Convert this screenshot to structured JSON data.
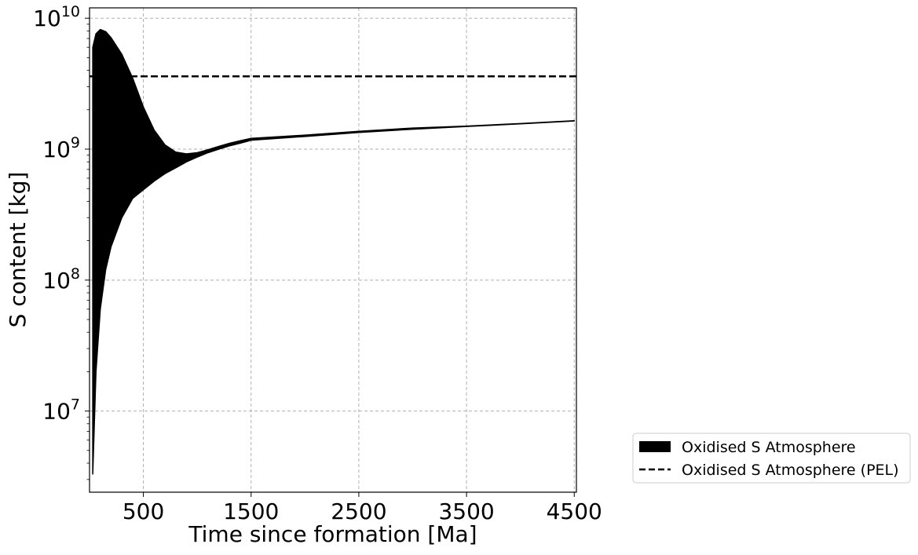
{
  "chart_data": {
    "type": "area",
    "title": "",
    "xlabel": "Time since formation [Ma]",
    "ylabel": "S content [kg]",
    "xlim": [
      0,
      4520
    ],
    "ylim": [
      2400000.0,
      12000000000.0
    ],
    "yscale": "log",
    "grid": true,
    "legend_position": "outside-lower-right",
    "x_ticks": [
      500,
      1500,
      2500,
      3500,
      4500
    ],
    "x_tick_labels": [
      "500",
      "1500",
      "2500",
      "3500",
      "4500"
    ],
    "y_ticks": [
      10000000.0,
      100000000.0,
      1000000000.0,
      10000000000.0
    ],
    "y_tick_labels": [
      {
        "base": "10",
        "exp": "7"
      },
      {
        "base": "10",
        "exp": "8"
      },
      {
        "base": "10",
        "exp": "9"
      },
      {
        "base": "10",
        "exp": "10"
      }
    ],
    "series": [
      {
        "name": "Oxidised S Atmosphere",
        "kind": "band",
        "color": "#000000",
        "x": [
          30,
          30,
          60,
          100,
          150,
          200,
          300,
          400,
          500,
          600,
          700,
          800,
          900,
          1000,
          1100,
          1200,
          1300,
          1400,
          1500,
          2000,
          2500,
          3000,
          3500,
          4000,
          4500
        ],
        "upper": [
          3300000.0,
          6000000000.0,
          7600000000.0,
          8200000000.0,
          7900000000.0,
          7100000000.0,
          5300000000.0,
          3500000000.0,
          2100000000.0,
          1400000000.0,
          1080000000.0,
          950000000.0,
          920000000.0,
          940000000.0,
          990000000.0,
          1050000000.0,
          1110000000.0,
          1160000000.0,
          1210000000.0,
          1280000000.0,
          1370000000.0,
          1450000000.0,
          1500000000.0,
          1570000000.0,
          1650000000.0
        ],
        "lower": [
          3300000.0,
          3300000.0,
          20000000.0,
          60000000.0,
          120000000.0,
          180000000.0,
          300000000.0,
          420000000.0,
          490000000.0,
          570000000.0,
          650000000.0,
          720000000.0,
          800000000.0,
          870000000.0,
          940000000.0,
          1000000000.0,
          1060000000.0,
          1110000000.0,
          1170000000.0,
          1250000000.0,
          1340000000.0,
          1420000000.0,
          1490000000.0,
          1560000000.0,
          1640000000.0
        ]
      },
      {
        "name": "Oxidised S Atmosphere (PEL)",
        "kind": "line",
        "style": "dashed",
        "color": "#000000",
        "x": [
          0,
          4520
        ],
        "y": [
          3600000000.0,
          3600000000.0
        ]
      }
    ]
  }
}
